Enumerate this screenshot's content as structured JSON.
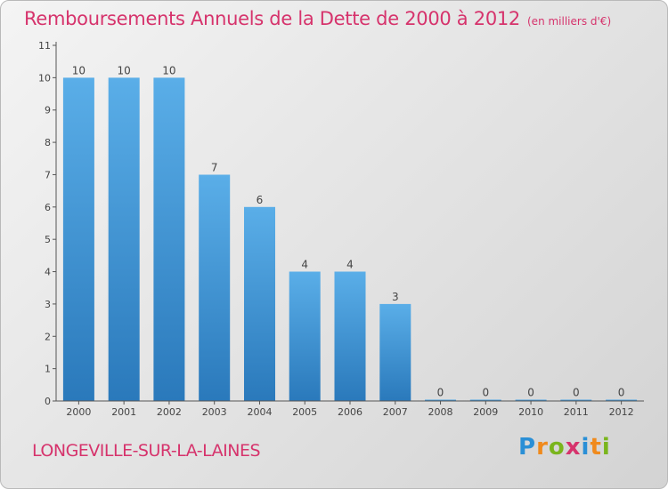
{
  "header": {
    "title": "Remboursements Annuels de la Dette de 2000 à 2012",
    "subtitle": "(en milliers d'€)"
  },
  "commune": "LONGEVILLE-SUR-LA-LAINES",
  "logo": {
    "text": "Proxiti",
    "letters": [
      {
        "ch": "P",
        "color": "#2a8fd6"
      },
      {
        "ch": "r",
        "color": "#f08a1c"
      },
      {
        "ch": "o",
        "color": "#7ab51d"
      },
      {
        "ch": "x",
        "color": "#d6336c"
      },
      {
        "ch": "i",
        "color": "#2a8fd6"
      },
      {
        "ch": "t",
        "color": "#f08a1c"
      },
      {
        "ch": "i",
        "color": "#7ab51d"
      }
    ]
  },
  "colors": {
    "bar_top": "#5aaee8",
    "bar_bottom": "#2a79bb",
    "accent": "#d6336c",
    "axis": "#555555"
  },
  "chart_data": {
    "type": "bar",
    "categories": [
      "2000",
      "2001",
      "2002",
      "2003",
      "2004",
      "2005",
      "2006",
      "2007",
      "2008",
      "2009",
      "2010",
      "2011",
      "2012"
    ],
    "values": [
      10,
      10,
      10,
      7,
      6,
      4,
      4,
      3,
      0,
      0,
      0,
      0,
      0
    ],
    "ylim": [
      0,
      11
    ],
    "yticks": [
      0,
      1,
      2,
      3,
      4,
      5,
      6,
      7,
      8,
      9,
      10,
      11
    ],
    "grid": false,
    "legend": "none"
  }
}
